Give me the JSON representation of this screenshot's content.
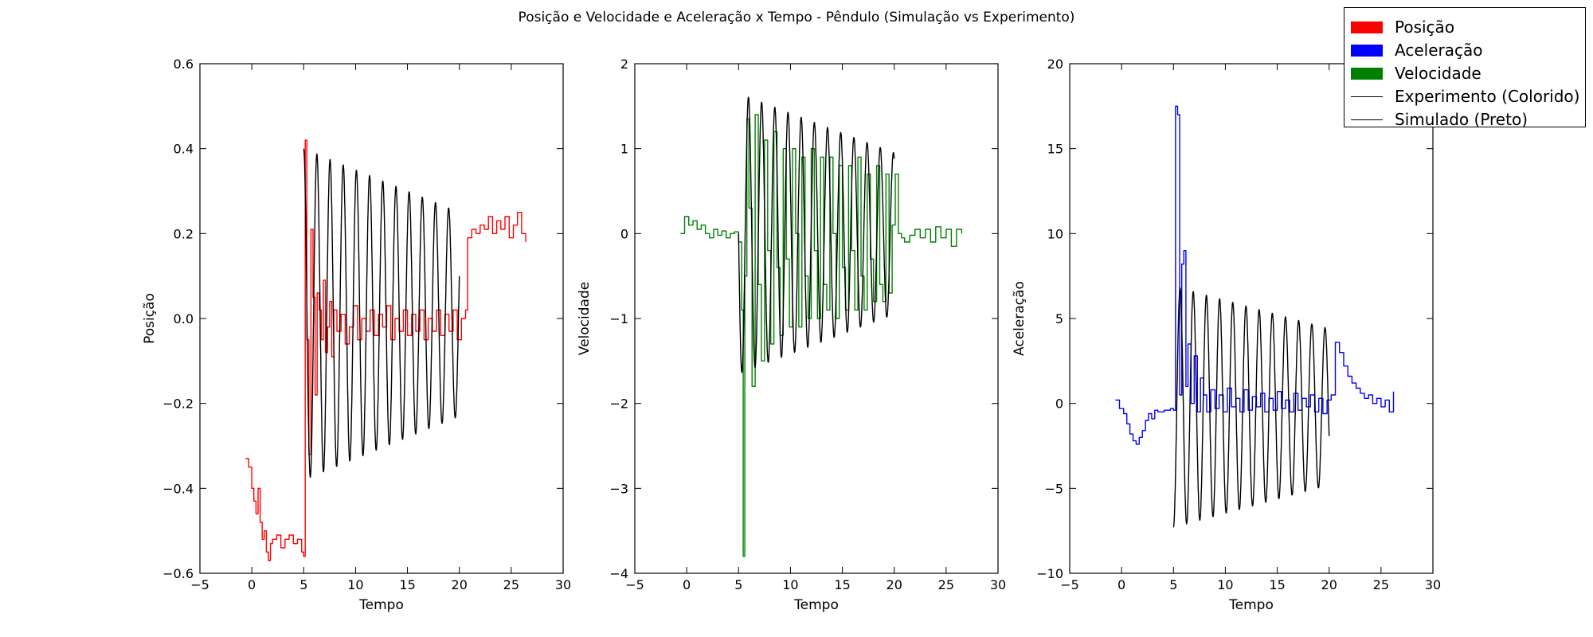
{
  "figure": {
    "title": "Posição e Velocidade e Aceleração x Tempo - Pêndulo (Simulação vs Experimento)"
  },
  "legend": {
    "placement": "top-right",
    "entries": [
      {
        "label": "Posição",
        "kind": "patch",
        "color": "#ff0000"
      },
      {
        "label": "Aceleração",
        "kind": "patch",
        "color": "#0000ff"
      },
      {
        "label": "Velocidade",
        "kind": "patch",
        "color": "#008000"
      },
      {
        "label": "Experimento (Colorido)",
        "kind": "line",
        "color": "#000000"
      },
      {
        "label": "Simulado (Preto)",
        "kind": "line",
        "color": "#000000"
      }
    ]
  },
  "colors": {
    "posicao": "#ff0000",
    "velocidade": "#008000",
    "aceleracao": "#0000ff",
    "simulado": "#000000"
  },
  "chart_data": [
    {
      "type": "line",
      "xlabel": "Tempo",
      "ylabel": "Posição",
      "xlim": [
        -5,
        30
      ],
      "ylim": [
        -0.6,
        0.6
      ],
      "xticks": [
        "−5",
        "0",
        "5",
        "10",
        "15",
        "20",
        "25",
        "30"
      ],
      "yticks": [
        "−0.6",
        "−0.4",
        "−0.2",
        "0.0",
        "0.2",
        "0.4",
        "0.6"
      ],
      "grid": false,
      "series": [
        {
          "role": "experimento",
          "color": "#ff0000",
          "step": true,
          "x": [
            -0.6,
            -0.3,
            0.0,
            0.2,
            0.4,
            0.6,
            0.8,
            1.0,
            1.2,
            1.4,
            1.6,
            1.8,
            2.0,
            2.4,
            2.8,
            3.2,
            3.6,
            4.0,
            4.4,
            4.8,
            5.0,
            5.15,
            5.3,
            5.5,
            5.7,
            5.9,
            6.1,
            6.3,
            6.5,
            6.7,
            6.9,
            7.1,
            7.3,
            7.5,
            7.7,
            7.9,
            8.2,
            8.6,
            9.0,
            9.4,
            9.8,
            10.2,
            10.6,
            11.0,
            11.4,
            11.8,
            12.2,
            12.6,
            13.0,
            13.4,
            13.8,
            14.2,
            14.6,
            15.0,
            15.4,
            15.8,
            16.2,
            16.6,
            17.0,
            17.4,
            17.8,
            18.2,
            18.6,
            19.0,
            19.4,
            19.8,
            20.2,
            20.6,
            20.8,
            21.2,
            21.6,
            22.0,
            22.4,
            22.8,
            23.2,
            23.6,
            24.0,
            24.4,
            24.8,
            25.2,
            25.6,
            26.0,
            26.4
          ],
          "y": [
            -0.33,
            -0.35,
            -0.4,
            -0.43,
            -0.46,
            -0.4,
            -0.48,
            -0.52,
            -0.5,
            -0.55,
            -0.57,
            -0.53,
            -0.52,
            -0.51,
            -0.54,
            -0.52,
            -0.51,
            -0.53,
            -0.52,
            -0.55,
            -0.56,
            0.42,
            -0.05,
            -0.32,
            0.21,
            0.05,
            -0.18,
            0.06,
            0.02,
            -0.05,
            0.09,
            -0.08,
            -0.02,
            0.04,
            -0.09,
            0.02,
            -0.03,
            0.01,
            -0.06,
            -0.02,
            0.03,
            -0.05,
            0.0,
            -0.03,
            0.02,
            -0.04,
            0.01,
            -0.02,
            0.03,
            -0.05,
            0.0,
            -0.03,
            0.02,
            -0.04,
            0.01,
            -0.03,
            0.02,
            -0.05,
            0.0,
            -0.03,
            0.02,
            -0.04,
            0.01,
            -0.03,
            0.02,
            -0.05,
            0.0,
            0.02,
            0.19,
            0.21,
            0.2,
            0.22,
            0.21,
            0.24,
            0.2,
            0.23,
            0.21,
            0.24,
            0.19,
            0.22,
            0.25,
            0.2,
            0.18
          ]
        },
        {
          "role": "simulado",
          "color": "#000000",
          "t_range": [
            5.0,
            20.0
          ],
          "offset": 0.01,
          "amplitude_start": 0.39,
          "amplitude_end": 0.24,
          "period": 1.27,
          "phase": 0.0,
          "wave": "cos"
        }
      ]
    },
    {
      "type": "line",
      "xlabel": "Tempo",
      "ylabel": "Velocidade",
      "xlim": [
        -5,
        30
      ],
      "ylim": [
        -4,
        2
      ],
      "xticks": [
        "−5",
        "0",
        "5",
        "10",
        "15",
        "20",
        "25",
        "30"
      ],
      "yticks": [
        "−4",
        "−3",
        "−2",
        "−1",
        "0",
        "1",
        "2"
      ],
      "grid": false,
      "series": [
        {
          "role": "experimento",
          "color": "#008000",
          "step": true,
          "x": [
            -0.6,
            -0.2,
            0.2,
            0.6,
            1.0,
            1.4,
            1.8,
            2.2,
            2.6,
            3.0,
            3.4,
            3.8,
            4.2,
            4.6,
            5.0,
            5.3,
            5.45,
            5.6,
            5.8,
            6.0,
            6.3,
            6.6,
            6.9,
            7.2,
            7.5,
            7.8,
            8.1,
            8.4,
            8.7,
            9.0,
            9.3,
            9.6,
            9.9,
            10.2,
            10.5,
            10.8,
            11.1,
            11.4,
            11.7,
            12.0,
            12.3,
            12.6,
            12.9,
            13.2,
            13.5,
            13.8,
            14.1,
            14.4,
            14.7,
            15.0,
            15.3,
            15.6,
            15.9,
            16.2,
            16.5,
            16.8,
            17.1,
            17.4,
            17.7,
            18.0,
            18.3,
            18.6,
            18.9,
            19.2,
            19.5,
            19.8,
            20.1,
            20.4,
            20.7,
            21.0,
            21.5,
            22.0,
            22.5,
            23.0,
            23.5,
            24.0,
            24.5,
            25.0,
            25.5,
            26.0,
            26.5
          ],
          "y": [
            0.0,
            0.2,
            0.1,
            0.15,
            0.05,
            0.1,
            0.0,
            -0.05,
            0.05,
            -0.02,
            0.03,
            -0.05,
            0.0,
            0.02,
            -0.1,
            -0.9,
            -3.8,
            -0.5,
            1.35,
            0.3,
            -1.8,
            1.4,
            -0.6,
            -1.5,
            1.1,
            -0.2,
            -1.3,
            1.2,
            -0.4,
            -1.2,
            1.0,
            -0.3,
            -1.1,
            1.0,
            0.0,
            -1.1,
            0.9,
            -0.5,
            -1.0,
            1.0,
            -0.2,
            -1.0,
            0.9,
            -0.6,
            -0.9,
            0.9,
            0.0,
            -1.0,
            0.8,
            -0.4,
            -0.9,
            0.8,
            -0.2,
            -0.9,
            0.9,
            -0.5,
            -0.9,
            0.7,
            -0.3,
            -0.8,
            0.8,
            -0.6,
            -0.8,
            0.7,
            -0.7,
            0.1,
            0.7,
            0.0,
            -0.05,
            -0.1,
            -0.02,
            0.05,
            -0.05,
            0.05,
            -0.1,
            0.08,
            -0.05,
            0.05,
            -0.15,
            0.05,
            0.0
          ]
        },
        {
          "role": "simulado",
          "color": "#000000",
          "t_range": [
            5.0,
            20.0
          ],
          "offset": 0.0,
          "amplitude_start": 1.65,
          "amplitude_end": 0.95,
          "period": 1.27,
          "phase": 0.0,
          "wave": "-sin"
        }
      ]
    },
    {
      "type": "line",
      "xlabel": "Tempo",
      "ylabel": "Aceleração",
      "xlim": [
        -5,
        30
      ],
      "ylim": [
        -10,
        20
      ],
      "xticks": [
        "−5",
        "0",
        "5",
        "10",
        "15",
        "20",
        "25",
        "30"
      ],
      "yticks": [
        "−10",
        "−5",
        "0",
        "5",
        "10",
        "15",
        "20"
      ],
      "grid": false,
      "series": [
        {
          "role": "experimento",
          "color": "#0000ff",
          "step": true,
          "x": [
            -0.6,
            -0.2,
            0.2,
            0.5,
            0.8,
            1.1,
            1.4,
            1.7,
            2.0,
            2.3,
            2.6,
            2.9,
            3.2,
            3.5,
            3.8,
            4.1,
            4.4,
            4.7,
            5.0,
            5.2,
            5.4,
            5.6,
            5.8,
            6.0,
            6.2,
            6.4,
            6.7,
            7.0,
            7.3,
            7.6,
            7.9,
            8.2,
            8.6,
            9.0,
            9.4,
            9.8,
            10.2,
            10.6,
            11.0,
            11.4,
            11.8,
            12.2,
            12.6,
            13.0,
            13.4,
            13.8,
            14.2,
            14.6,
            15.0,
            15.4,
            15.8,
            16.2,
            16.6,
            17.0,
            17.4,
            17.8,
            18.2,
            18.6,
            19.0,
            19.4,
            19.8,
            20.2,
            20.6,
            21.0,
            21.4,
            21.8,
            22.2,
            22.6,
            23.0,
            23.4,
            23.8,
            24.2,
            24.6,
            25.0,
            25.4,
            25.8,
            26.2
          ],
          "y": [
            0.2,
            -0.3,
            -0.6,
            -1.2,
            -1.8,
            -2.2,
            -2.4,
            -2.0,
            -1.6,
            -1.0,
            -0.6,
            -0.9,
            -0.4,
            -0.5,
            -0.5,
            -0.4,
            -0.4,
            -0.3,
            -0.4,
            17.5,
            17.0,
            0.5,
            8.2,
            9.0,
            1.0,
            3.5,
            0.0,
            2.8,
            -0.5,
            1.5,
            0.5,
            -0.5,
            0.8,
            -0.3,
            0.5,
            -0.5,
            0.9,
            -0.2,
            0.3,
            -0.5,
            0.8,
            -0.4,
            0.4,
            -0.2,
            0.6,
            -0.5,
            0.3,
            -0.4,
            0.7,
            -0.3,
            0.2,
            -0.5,
            0.6,
            -0.4,
            0.3,
            -0.2,
            0.5,
            -0.5,
            0.3,
            -0.6,
            0.2,
            0.5,
            3.6,
            3.0,
            2.2,
            1.6,
            1.2,
            0.9,
            0.6,
            0.3,
            0.5,
            0.0,
            0.3,
            -0.2,
            0.2,
            -0.5,
            0.7
          ]
        },
        {
          "role": "simulado",
          "color": "#000000",
          "t_range": [
            5.0,
            20.0
          ],
          "offset": -0.2,
          "amplitude_start": 7.1,
          "amplitude_end": 4.6,
          "period": 1.27,
          "phase": 0.0,
          "wave": "-cos"
        }
      ]
    }
  ]
}
